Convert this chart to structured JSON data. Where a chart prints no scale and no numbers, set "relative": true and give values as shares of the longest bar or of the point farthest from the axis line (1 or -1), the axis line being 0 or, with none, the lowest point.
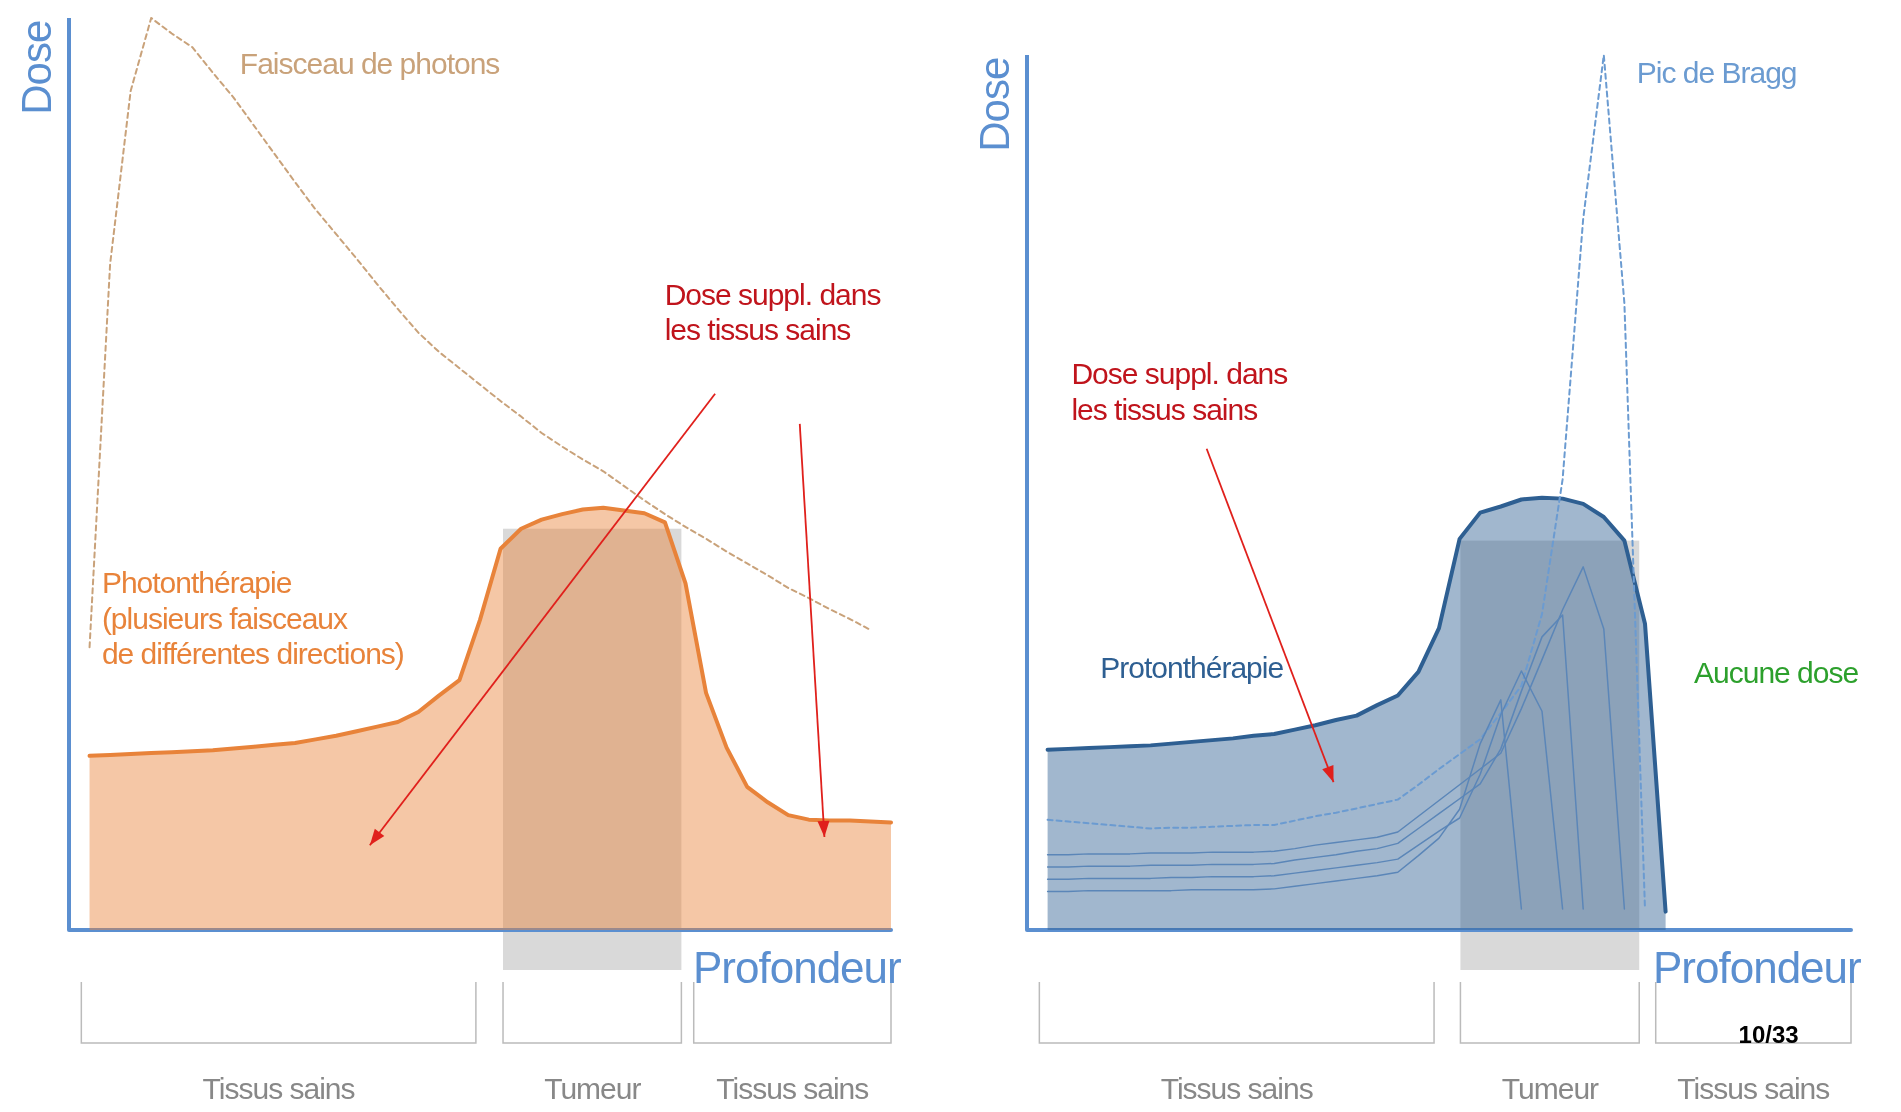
{
  "chart_data": [
    {
      "type": "line",
      "relative": true,
      "xlabel": "Profondeur",
      "ylabel": "Dose",
      "grid": false,
      "legend": false,
      "marker": "none",
      "categories": [
        null,
        null,
        null,
        null,
        null,
        null,
        null,
        null,
        null,
        null,
        null,
        null,
        null,
        null,
        null,
        null,
        null,
        null,
        null,
        null,
        null,
        null,
        null,
        null,
        null,
        null,
        null,
        null,
        null,
        null,
        null,
        null,
        null,
        null,
        null,
        null,
        null,
        null,
        null,
        null,
        null
      ],
      "series": [
        {
          "name": "Faisceau de photons",
          "type": "line",
          "line_style": "dashed",
          "color": "#c9a27a",
          "values": [
            null,
            0.31,
            0.73,
            0.92,
            1,
            0.983,
            0.968,
            0.94,
            0.913,
            0.882,
            0.851,
            0.82,
            0.79,
            0.763,
            0.736,
            0.708,
            0.681,
            0.655,
            0.634,
            0.616,
            0.598,
            0.58,
            0.563,
            0.545,
            0.53,
            0.516,
            0.503,
            0.487,
            0.471,
            0.456,
            0.442,
            0.429,
            0.415,
            0.402,
            0.389,
            0.375,
            0.364,
            0.352,
            0.341,
            0.329,
            null
          ]
        },
        {
          "name": "Photonthérapie\n(plusieurs faisceaux\nde différentes directions)",
          "type": "area",
          "line_style": "solid",
          "color": "#e8833a",
          "values": [
            null,
            0.191,
            0.192,
            0.193,
            0.194,
            0.195,
            0.196,
            0.197,
            0.199,
            0.201,
            0.203,
            0.205,
            0.209,
            0.213,
            0.218,
            0.223,
            0.228,
            0.239,
            0.257,
            0.274,
            0.34,
            0.418,
            0.44,
            0.45,
            0.456,
            0.461,
            0.463,
            0.46,
            0.457,
            0.447,
            0.38,
            0.26,
            0.2,
            0.157,
            0.14,
            0.126,
            0.121,
            0.12,
            0.12,
            0.119,
            0.118
          ]
        }
      ],
      "annotations": [
        "Dose suppl. dans\nles tissus sains",
        "Tissus sains",
        "Tumeur",
        "Tissus sains"
      ]
    },
    {
      "type": "line",
      "relative": true,
      "xlabel": "Profondeur",
      "ylabel": "Dose",
      "grid": false,
      "legend": false,
      "marker": "none",
      "categories": [
        null,
        null,
        null,
        null,
        null,
        null,
        null,
        null,
        null,
        null,
        null,
        null,
        null,
        null,
        null,
        null,
        null,
        null,
        null,
        null,
        null,
        null,
        null,
        null,
        null,
        null,
        null,
        null,
        null,
        null,
        null,
        null,
        null,
        null,
        null,
        null,
        null,
        null,
        null,
        null,
        null
      ],
      "series": [
        {
          "name": "Protonthérapie",
          "type": "area",
          "line_style": "solid",
          "color": "#2e5f92",
          "values": [
            null,
            0.206,
            0.207,
            0.208,
            0.209,
            0.21,
            0.211,
            0.213,
            0.215,
            0.217,
            0.219,
            0.222,
            0.224,
            0.229,
            0.234,
            0.24,
            0.245,
            0.257,
            0.268,
            0.295,
            0.345,
            0.447,
            0.477,
            0.484,
            0.492,
            0.494,
            0.493,
            0.487,
            0.472,
            0.445,
            0.35,
            0.021,
            null,
            null,
            null,
            null,
            null,
            null,
            null,
            null,
            null
          ]
        },
        {
          "name": "Pic de Bragg",
          "type": "line",
          "line_style": "dashed",
          "color": "#6b9bd1",
          "values": [
            null,
            0.126,
            0.124,
            0.122,
            0.12,
            0.118,
            0.116,
            0.117,
            0.117,
            0.118,
            0.119,
            0.12,
            0.12,
            0.125,
            0.13,
            0.134,
            0.139,
            0.144,
            0.149,
            0.166,
            0.184,
            0.201,
            0.218,
            0.248,
            0.279,
            0.361,
            0.515,
            0.813,
            1,
            0.716,
            0.024,
            null,
            null,
            null,
            null,
            null,
            null,
            null,
            null,
            null,
            null
          ]
        },
        {
          "type": "line",
          "line_style": "solid",
          "color": "#5b86b8",
          "values": [
            null,
            0.044,
            0.044,
            0.045,
            0.045,
            0.045,
            0.045,
            0.045,
            0.046,
            0.046,
            0.046,
            0.046,
            0.047,
            0.05,
            0.053,
            0.056,
            0.059,
            0.062,
            0.066,
            0.085,
            0.105,
            0.138,
            0.213,
            0.263,
            0.024,
            null,
            null,
            null,
            null,
            null,
            null,
            null,
            null,
            null,
            null,
            null,
            null,
            null,
            null,
            null,
            null
          ]
        },
        {
          "type": "line",
          "line_style": "solid",
          "color": "#5b86b8",
          "values": [
            null,
            0.058,
            0.058,
            0.059,
            0.059,
            0.059,
            0.059,
            0.06,
            0.06,
            0.061,
            0.061,
            0.061,
            0.062,
            0.065,
            0.068,
            0.071,
            0.074,
            0.077,
            0.081,
            0.097,
            0.113,
            0.128,
            0.178,
            0.246,
            0.296,
            0.25,
            0.024,
            null,
            null,
            null,
            null,
            null,
            null,
            null,
            null,
            null,
            null,
            null,
            null,
            null,
            null
          ]
        },
        {
          "type": "line",
          "line_style": "solid",
          "color": "#5b86b8",
          "values": [
            null,
            0.072,
            0.072,
            0.073,
            0.073,
            0.073,
            0.074,
            0.074,
            0.074,
            0.075,
            0.075,
            0.075,
            0.076,
            0.08,
            0.083,
            0.086,
            0.09,
            0.093,
            0.099,
            0.116,
            0.133,
            0.15,
            0.167,
            0.207,
            0.273,
            0.335,
            0.36,
            0.024,
            null,
            null,
            null,
            null,
            null,
            null,
            null,
            null,
            null,
            null,
            null,
            null,
            null
          ]
        },
        {
          "type": "line",
          "line_style": "solid",
          "color": "#5b86b8",
          "values": [
            null,
            0.086,
            0.086,
            0.087,
            0.087,
            0.087,
            0.088,
            0.088,
            0.088,
            0.089,
            0.089,
            0.089,
            0.09,
            0.093,
            0.097,
            0.1,
            0.103,
            0.106,
            0.112,
            0.13,
            0.148,
            0.166,
            0.184,
            0.202,
            0.253,
            0.309,
            0.366,
            0.415,
            0.344,
            0.024,
            null,
            null,
            null,
            null,
            null,
            null,
            null,
            null,
            null,
            null,
            null
          ]
        }
      ],
      "annotations": [
        "Dose suppl. dans\nles tissus sains",
        "Aucune dose",
        "Tissus sains",
        "Tumeur",
        "Tissus sains",
        "10/33"
      ]
    }
  ]
}
